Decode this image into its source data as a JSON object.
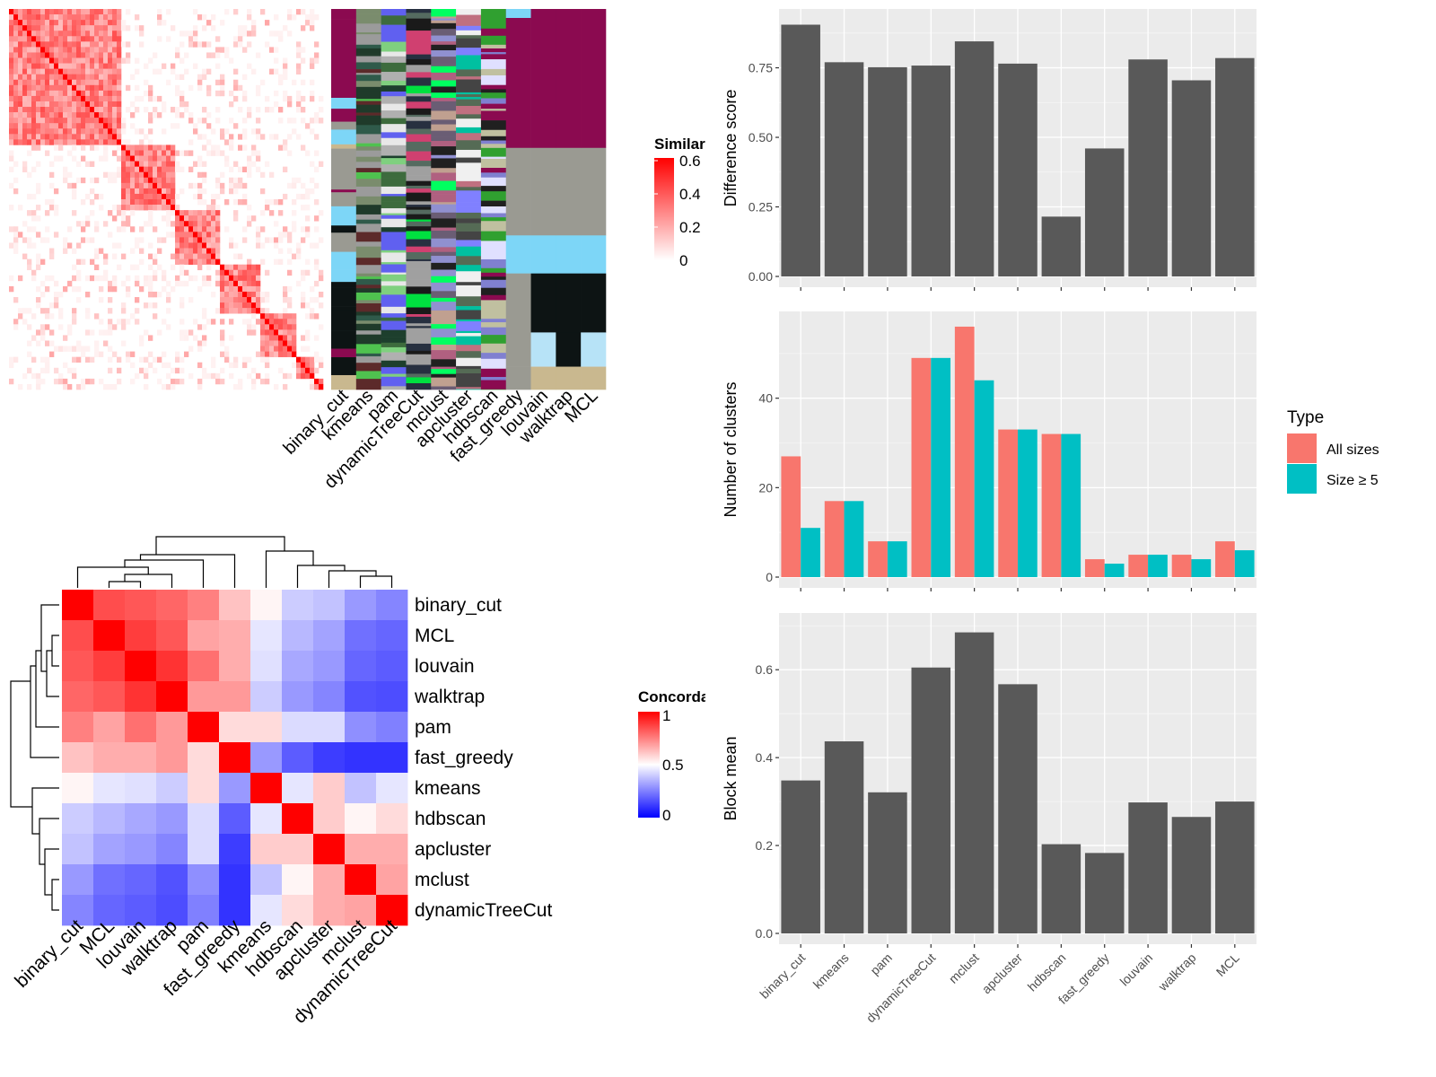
{
  "chart_data": [
    {
      "type": "heatmap",
      "title": "",
      "legend": {
        "title": "Similarity",
        "ticks": [
          "0",
          "0.2",
          "0.4",
          "0.6"
        ],
        "colors": [
          "#ffffff",
          "#ff0000"
        ]
      },
      "column_labels": [
        "binary_cut",
        "kmeans",
        "pam",
        "dynamicTreeCut",
        "mclust",
        "apcluster",
        "hdbscan",
        "fast_greedy",
        "louvain",
        "walktrap",
        "MCL"
      ],
      "diagonal_blocks": [
        [
          0,
          0.36
        ],
        [
          0.36,
          0.53
        ],
        [
          0.53,
          0.67
        ],
        [
          0.67,
          0.8
        ],
        [
          0.8,
          0.91
        ],
        [
          0.91,
          0.97
        ],
        [
          0.97,
          1.0
        ]
      ]
    },
    {
      "type": "heatmap",
      "title": "",
      "legend": {
        "title": "Concordance",
        "ticks": [
          "0",
          "0.5",
          "1"
        ],
        "colors": [
          "#0000ff",
          "#ffffff",
          "#ff0000"
        ]
      },
      "row_labels": [
        "binary_cut",
        "MCL",
        "louvain",
        "walktrap",
        "pam",
        "fast_greedy",
        "kmeans",
        "hdbscan",
        "apcluster",
        "mclust",
        "dynamicTreeCut"
      ],
      "column_labels": [
        "binary_cut",
        "MCL",
        "louvain",
        "walktrap",
        "pam",
        "fast_greedy",
        "kmeans",
        "hdbscan",
        "apcluster",
        "mclust",
        "dynamicTreeCut"
      ],
      "values": [
        [
          1.0,
          0.85,
          0.83,
          0.8,
          0.75,
          0.62,
          0.52,
          0.4,
          0.38,
          0.3,
          0.26
        ],
        [
          0.85,
          1.0,
          0.88,
          0.83,
          0.68,
          0.66,
          0.45,
          0.36,
          0.32,
          0.22,
          0.2
        ],
        [
          0.83,
          0.88,
          1.0,
          0.9,
          0.78,
          0.66,
          0.44,
          0.33,
          0.3,
          0.2,
          0.18
        ],
        [
          0.8,
          0.83,
          0.9,
          1.0,
          0.7,
          0.7,
          0.4,
          0.3,
          0.26,
          0.16,
          0.15
        ],
        [
          0.75,
          0.68,
          0.78,
          0.7,
          1.0,
          0.57,
          0.57,
          0.43,
          0.43,
          0.28,
          0.25
        ],
        [
          0.62,
          0.66,
          0.66,
          0.7,
          0.57,
          1.0,
          0.3,
          0.18,
          0.12,
          0.1,
          0.1
        ],
        [
          0.52,
          0.45,
          0.44,
          0.4,
          0.57,
          0.3,
          1.0,
          0.45,
          0.6,
          0.38,
          0.45
        ],
        [
          0.4,
          0.36,
          0.33,
          0.3,
          0.43,
          0.18,
          0.45,
          1.0,
          0.6,
          0.52,
          0.57
        ],
        [
          0.38,
          0.32,
          0.3,
          0.26,
          0.43,
          0.12,
          0.6,
          0.6,
          1.0,
          0.66,
          0.66
        ],
        [
          0.3,
          0.22,
          0.2,
          0.16,
          0.28,
          0.1,
          0.38,
          0.52,
          0.66,
          1.0,
          0.68
        ],
        [
          0.26,
          0.2,
          0.18,
          0.15,
          0.25,
          0.1,
          0.45,
          0.57,
          0.66,
          0.68,
          1.0
        ]
      ]
    },
    {
      "type": "bar",
      "title": "",
      "xlabel": "",
      "ylabel": "Difference score",
      "categories": [
        "binary_cut",
        "kmeans",
        "pam",
        "dynamicTreeCut",
        "mclust",
        "apcluster",
        "hdbscan",
        "fast_greedy",
        "louvain",
        "walktrap",
        "MCL"
      ],
      "values": [
        0.905,
        0.77,
        0.752,
        0.758,
        0.845,
        0.765,
        0.215,
        0.46,
        0.78,
        0.705,
        0.785
      ],
      "ylim": [
        0,
        0.955
      ],
      "yticks": [
        "0.00",
        "0.25",
        "0.50",
        "0.75"
      ],
      "bar_color": "#595959"
    },
    {
      "type": "bar",
      "title": "",
      "xlabel": "",
      "ylabel": "Number of clusters",
      "categories": [
        "binary_cut",
        "kmeans",
        "pam",
        "dynamicTreeCut",
        "mclust",
        "apcluster",
        "hdbscan",
        "fast_greedy",
        "louvain",
        "walktrap",
        "MCL"
      ],
      "series": [
        {
          "name": "All sizes",
          "color": "#f8766d",
          "values": [
            27,
            17,
            8,
            49,
            56,
            33,
            32,
            4,
            5,
            5,
            8
          ]
        },
        {
          "name": "Size ≥ 5",
          "color": "#00bfc4",
          "values": [
            11,
            17,
            8,
            49,
            44,
            33,
            32,
            3,
            5,
            4,
            6
          ]
        }
      ],
      "ylim": [
        0,
        59
      ],
      "yticks": [
        "0",
        "20",
        "40"
      ],
      "legend": {
        "title": "Type",
        "position": "right"
      }
    },
    {
      "type": "bar",
      "title": "",
      "xlabel": "",
      "ylabel": "Block mean",
      "categories": [
        "binary_cut",
        "kmeans",
        "pam",
        "dynamicTreeCut",
        "mclust",
        "apcluster",
        "hdbscan",
        "fast_greedy",
        "louvain",
        "walktrap",
        "MCL"
      ],
      "values": [
        0.348,
        0.437,
        0.321,
        0.605,
        0.685,
        0.567,
        0.203,
        0.183,
        0.298,
        0.265,
        0.3
      ],
      "ylim": [
        0,
        0.725
      ],
      "yticks": [
        "0.0",
        "0.2",
        "0.4",
        "0.6"
      ],
      "bar_color": "#595959"
    }
  ]
}
